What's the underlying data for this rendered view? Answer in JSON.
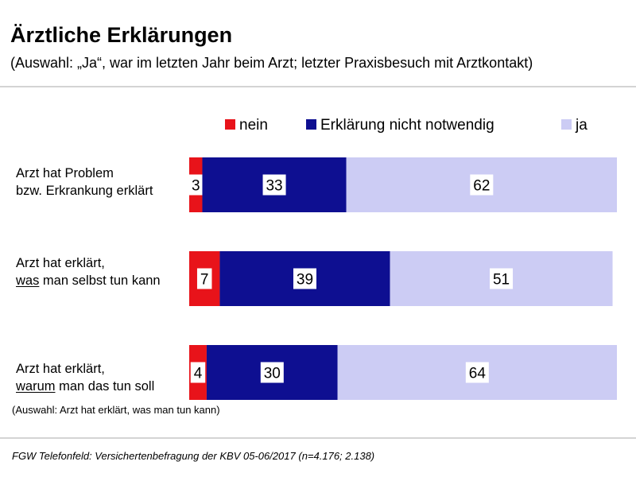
{
  "title": "Ärztliche Erklärungen",
  "subtitle": "(Auswahl: „Ja“, war im letzten Jahr beim Arzt; letzter Praxisbesuch mit Arztkontakt)",
  "note": "(Auswahl: Arzt hat erklärt, was man tun kann)",
  "source": "FGW Telefonfeld: Versichertenbefragung der KBV 05-06/2017 (n=4.176; 2.138)",
  "chart_data": {
    "type": "bar",
    "orientation": "horizontal",
    "stacked": true,
    "title": "Ärztliche Erklärungen",
    "categories": [
      "Arzt hat Problem bzw. Erkrankung erklärt",
      "Arzt hat erklärt, was man selbst tun kann",
      "Arzt hat erklärt, warum man das tun soll"
    ],
    "category_lines": [
      [
        {
          "text": "Arzt hat Problem"
        },
        {
          "text": "bzw. Erkrankung erklärt"
        }
      ],
      [
        {
          "text": "Arzt hat erklärt,"
        },
        {
          "underline": "was",
          "text": " man selbst tun kann"
        }
      ],
      [
        {
          "text": "Arzt hat erklärt,"
        },
        {
          "underline": "warum",
          "text": " man das tun soll"
        }
      ]
    ],
    "series": [
      {
        "name": "nein",
        "color": "#e8131a",
        "values": [
          3,
          7,
          4
        ]
      },
      {
        "name": "Erklärung nicht notwendig",
        "color": "#0e0f91",
        "values": [
          33,
          39,
          30
        ]
      },
      {
        "name": "ja",
        "color": "#ccccf4",
        "values": [
          62,
          51,
          64
        ]
      }
    ],
    "xlim": [
      0,
      98
    ],
    "legend_position": "top",
    "grid": false,
    "data_labels": true
  }
}
